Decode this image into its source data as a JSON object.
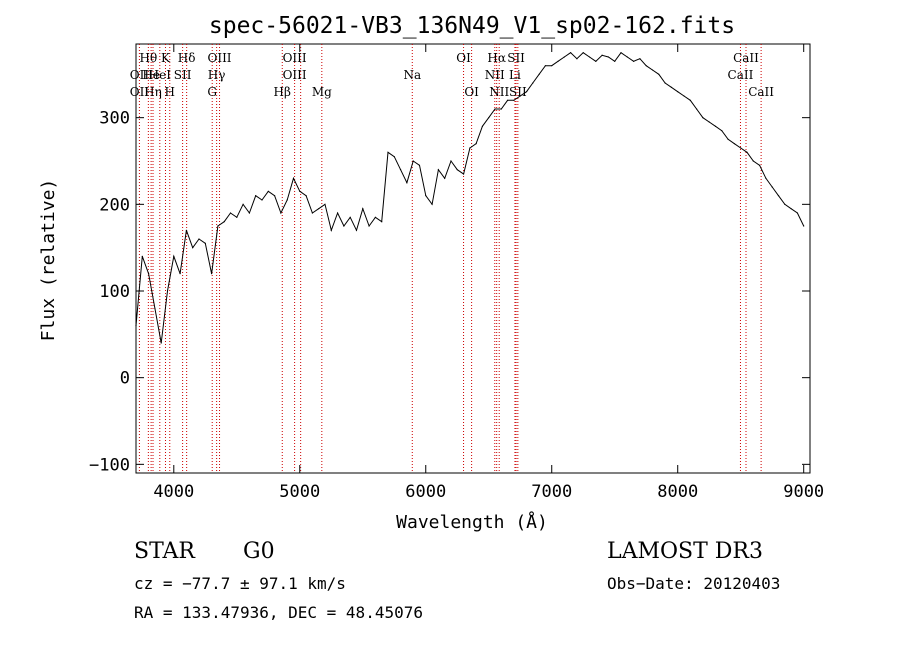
{
  "chart_data": {
    "type": "line",
    "title": "spec-56021-VB3_136N49_V1_sp02-162.fits",
    "xlabel": "Wavelength (Å)",
    "ylabel": "Flux (relative)",
    "xlim": [
      3700,
      9050
    ],
    "ylim": [
      -110,
      385
    ],
    "xticks": [
      4000,
      5000,
      6000,
      7000,
      8000,
      9000
    ],
    "yticks": [
      -100,
      0,
      100,
      200,
      300
    ],
    "grid": false,
    "series": [
      {
        "name": "flux",
        "x": [
          3700,
          3750,
          3800,
          3850,
          3900,
          3950,
          4000,
          4050,
          4100,
          4150,
          4200,
          4250,
          4300,
          4350,
          4400,
          4450,
          4500,
          4550,
          4600,
          4650,
          4700,
          4750,
          4800,
          4850,
          4900,
          4950,
          5000,
          5050,
          5100,
          5150,
          5200,
          5250,
          5300,
          5350,
          5400,
          5450,
          5500,
          5550,
          5600,
          5650,
          5700,
          5750,
          5800,
          5850,
          5900,
          5950,
          6000,
          6050,
          6100,
          6150,
          6200,
          6250,
          6300,
          6350,
          6400,
          6450,
          6500,
          6550,
          6600,
          6650,
          6700,
          6750,
          6800,
          6850,
          6900,
          6950,
          7000,
          7050,
          7100,
          7150,
          7200,
          7250,
          7300,
          7350,
          7400,
          7450,
          7500,
          7550,
          7600,
          7650,
          7700,
          7750,
          7800,
          7850,
          7900,
          7950,
          8000,
          8050,
          8100,
          8150,
          8200,
          8250,
          8300,
          8350,
          8400,
          8450,
          8500,
          8550,
          8600,
          8650,
          8700,
          8750,
          8800,
          8850,
          8900,
          8950,
          9000
        ],
        "y": [
          60,
          140,
          120,
          80,
          40,
          100,
          140,
          120,
          170,
          150,
          160,
          155,
          120,
          175,
          180,
          190,
          185,
          200,
          190,
          210,
          205,
          215,
          210,
          190,
          205,
          230,
          215,
          210,
          190,
          195,
          200,
          170,
          190,
          175,
          185,
          170,
          195,
          175,
          185,
          180,
          260,
          255,
          240,
          225,
          250,
          245,
          210,
          200,
          240,
          230,
          250,
          240,
          235,
          265,
          270,
          290,
          300,
          310,
          310,
          320,
          320,
          325,
          330,
          340,
          350,
          360,
          360,
          365,
          370,
          375,
          368,
          375,
          370,
          365,
          372,
          370,
          365,
          375,
          370,
          365,
          368,
          360,
          355,
          350,
          340,
          335,
          330,
          325,
          320,
          310,
          300,
          295,
          290,
          285,
          275,
          270,
          265,
          260,
          250,
          245,
          230,
          220,
          210,
          200,
          195,
          190,
          175
        ]
      }
    ],
    "line_labels": [
      {
        "name": "Hθ",
        "x": 3798,
        "row": 1
      },
      {
        "name": "OII",
        "x": 3727,
        "row": 2
      },
      {
        "name": "OII",
        "x": 3727,
        "row": 3
      },
      {
        "name": "He",
        "x": 3820,
        "row": 2
      },
      {
        "name": "Hη",
        "x": 3835,
        "row": 3
      },
      {
        "name": "K",
        "x": 3934,
        "row": 1
      },
      {
        "name": "HeI",
        "x": 3889,
        "row": 2
      },
      {
        "name": "H",
        "x": 3968,
        "row": 3
      },
      {
        "name": "SII",
        "x": 4070,
        "row": 2
      },
      {
        "name": "Hδ",
        "x": 4102,
        "row": 1
      },
      {
        "name": "OIII",
        "x": 4363,
        "row": 1
      },
      {
        "name": "Hγ",
        "x": 4340,
        "row": 2
      },
      {
        "name": "G",
        "x": 4305,
        "row": 3
      },
      {
        "name": "Hβ",
        "x": 4861,
        "row": 3
      },
      {
        "name": "OIII",
        "x": 4959,
        "row": 1
      },
      {
        "name": "OIII",
        "x": 4959,
        "row": 2
      },
      {
        "name": "Mg",
        "x": 5175,
        "row": 3
      },
      {
        "name": "Na",
        "x": 5893,
        "row": 2
      },
      {
        "name": "OI",
        "x": 6300,
        "row": 1
      },
      {
        "name": "OI",
        "x": 6364,
        "row": 3
      },
      {
        "name": "Hα",
        "x": 6563,
        "row": 1
      },
      {
        "name": "SII",
        "x": 6717,
        "row": 1
      },
      {
        "name": "NII",
        "x": 6548,
        "row": 2
      },
      {
        "name": "Li",
        "x": 6708,
        "row": 2
      },
      {
        "name": "NII",
        "x": 6583,
        "row": 3
      },
      {
        "name": "SII",
        "x": 6731,
        "row": 3
      },
      {
        "name": "CaII",
        "x": 8542,
        "row": 1
      },
      {
        "name": "CaII",
        "x": 8498,
        "row": 2
      },
      {
        "name": "CaII",
        "x": 8662,
        "row": 3
      }
    ],
    "line_markers": [
      3727,
      3798,
      3820,
      3835,
      3889,
      3934,
      3968,
      4070,
      4102,
      4305,
      4340,
      4363,
      4861,
      4959,
      5007,
      5175,
      5893,
      6300,
      6364,
      6548,
      6563,
      6583,
      6708,
      6717,
      6731,
      8498,
      8542,
      8662
    ]
  },
  "info": {
    "class": "STAR",
    "subclass": "G0",
    "survey": "LAMOST DR3",
    "redshift": "cz = −77.7 ± 97.1 km/s",
    "obs_date": "Obs−Date: 20120403",
    "coords": "RA = 133.47936, DEC =  48.45076"
  }
}
